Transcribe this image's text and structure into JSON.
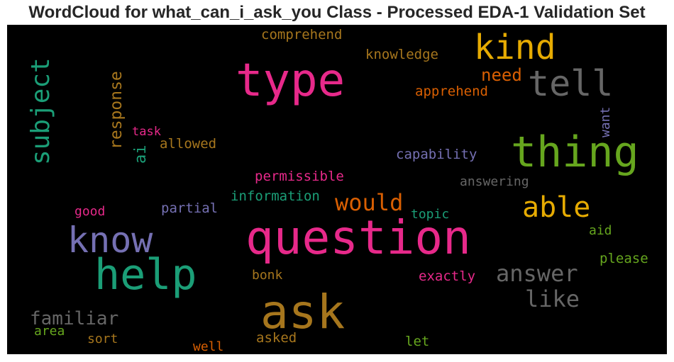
{
  "chart_data": {
    "type": "wordcloud",
    "title": "WordCloud for what_can_i_ask_you Class - Processed EDA-1 Validation Set",
    "background": "#000000",
    "words": [
      {
        "text": "question",
        "color": "#e7298a",
        "orientation": "horizontal"
      },
      {
        "text": "ask",
        "color": "#a6761d",
        "orientation": "horizontal"
      },
      {
        "text": "type",
        "color": "#e7298a",
        "orientation": "horizontal"
      },
      {
        "text": "thing",
        "color": "#66a61e",
        "orientation": "horizontal"
      },
      {
        "text": "help",
        "color": "#1b9e77",
        "orientation": "horizontal"
      },
      {
        "text": "know",
        "color": "#7570b3",
        "orientation": "horizontal"
      },
      {
        "text": "tell",
        "color": "#666666",
        "orientation": "horizontal"
      },
      {
        "text": "kind",
        "color": "#e6ab02",
        "orientation": "horizontal"
      },
      {
        "text": "subject",
        "color": "#1b9e77",
        "orientation": "vertical"
      },
      {
        "text": "able",
        "color": "#e6ab02",
        "orientation": "horizontal"
      },
      {
        "text": "answer",
        "color": "#666666",
        "orientation": "horizontal"
      },
      {
        "text": "like",
        "color": "#666666",
        "orientation": "horizontal"
      },
      {
        "text": "would",
        "color": "#d95f02",
        "orientation": "horizontal"
      },
      {
        "text": "familiar",
        "color": "#666666",
        "orientation": "horizontal"
      },
      {
        "text": "response",
        "color": "#a6761d",
        "orientation": "vertical"
      },
      {
        "text": "need",
        "color": "#d95f02",
        "orientation": "horizontal"
      },
      {
        "text": "ai",
        "color": "#1b9e77",
        "orientation": "vertical"
      },
      {
        "text": "comprehend",
        "color": "#a6761d",
        "orientation": "horizontal"
      },
      {
        "text": "knowledge",
        "color": "#a6761d",
        "orientation": "horizontal"
      },
      {
        "text": "apprehend",
        "color": "#d95f02",
        "orientation": "horizontal"
      },
      {
        "text": "capability",
        "color": "#7570b3",
        "orientation": "horizontal"
      },
      {
        "text": "answering",
        "color": "#666666",
        "orientation": "horizontal"
      },
      {
        "text": "permissible",
        "color": "#e7298a",
        "orientation": "horizontal"
      },
      {
        "text": "information",
        "color": "#1b9e77",
        "orientation": "horizontal"
      },
      {
        "text": "allowed",
        "color": "#a6761d",
        "orientation": "horizontal"
      },
      {
        "text": "task",
        "color": "#e7298a",
        "orientation": "horizontal"
      },
      {
        "text": "want",
        "color": "#7570b3",
        "orientation": "vertical"
      },
      {
        "text": "partial",
        "color": "#7570b3",
        "orientation": "horizontal"
      },
      {
        "text": "good",
        "color": "#e7298a",
        "orientation": "horizontal"
      },
      {
        "text": "topic",
        "color": "#1b9e77",
        "orientation": "horizontal"
      },
      {
        "text": "aid",
        "color": "#66a61e",
        "orientation": "horizontal"
      },
      {
        "text": "please",
        "color": "#66a61e",
        "orientation": "horizontal"
      },
      {
        "text": "exactly",
        "color": "#e7298a",
        "orientation": "horizontal"
      },
      {
        "text": "bonk",
        "color": "#a6761d",
        "orientation": "horizontal"
      },
      {
        "text": "area",
        "color": "#66a61e",
        "orientation": "horizontal"
      },
      {
        "text": "sort",
        "color": "#a6761d",
        "orientation": "horizontal"
      },
      {
        "text": "well",
        "color": "#d95f02",
        "orientation": "horizontal"
      },
      {
        "text": "asked",
        "color": "#a6761d",
        "orientation": "horizontal"
      },
      {
        "text": "let",
        "color": "#66a61e",
        "orientation": "horizontal"
      }
    ]
  }
}
